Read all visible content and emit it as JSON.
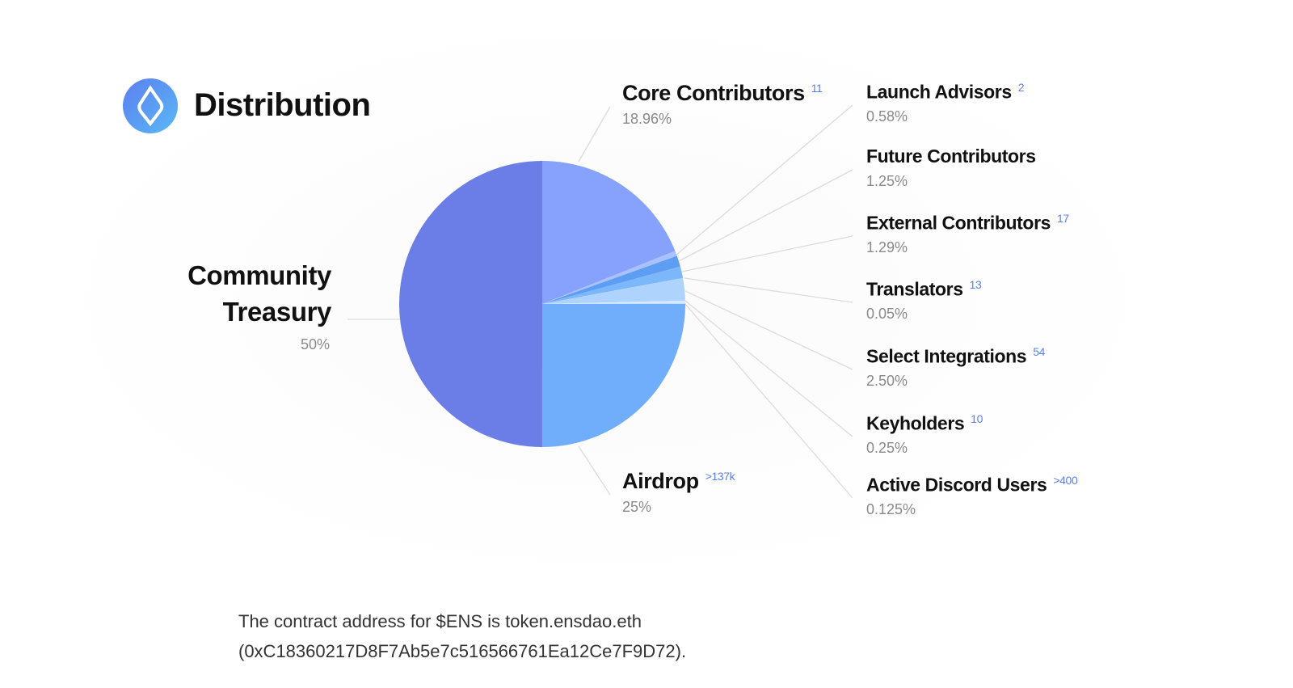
{
  "title": "Distribution",
  "colors": {
    "accent": "#5b7ff0",
    "logo": "#5a9cf6"
  },
  "chart_data": {
    "type": "pie",
    "title": "Distribution",
    "slices": [
      {
        "label": "Core Contributors",
        "value": 18.96,
        "pct_label": "18.96%",
        "recipients": "11",
        "color": "#86a2fc"
      },
      {
        "label": "Launch Advisors",
        "value": 0.58,
        "pct_label": "0.58%",
        "recipients": "2",
        "color": "#a9c1fd"
      },
      {
        "label": "Future Contributors",
        "value": 1.25,
        "pct_label": "1.25%",
        "recipients": "",
        "color": "#5d9ef2"
      },
      {
        "label": "External Contributors",
        "value": 1.29,
        "pct_label": "1.29%",
        "recipients": "17",
        "color": "#7cb6fb"
      },
      {
        "label": "Translators",
        "value": 0.05,
        "pct_label": "0.05%",
        "recipients": "13",
        "color": "#9cc8fb"
      },
      {
        "label": "Select Integrations",
        "value": 2.5,
        "pct_label": "2.50%",
        "recipients": "54",
        "color": "#aed3fd"
      },
      {
        "label": "Keyholders",
        "value": 0.25,
        "pct_label": "0.25%",
        "recipients": "10",
        "color": "#d8e9ff"
      },
      {
        "label": "Active Discord Users",
        "value": 0.125,
        "pct_label": "0.125%",
        "recipients": ">400",
        "color": "#c3ddfd"
      },
      {
        "label": "Airdrop",
        "value": 25,
        "pct_label": "25%",
        "recipients": ">137k",
        "color": "#70adfb"
      },
      {
        "label": "Community Treasury",
        "value": 50,
        "pct_label": "50%",
        "recipients": "",
        "color": "#6b7ee8"
      }
    ]
  },
  "footer": {
    "line1": "The contract address for $ENS is token.ensdao.eth",
    "line2": "(0xC18360217D8F7Ab5e7c516566761Ea12Ce7F9D72)."
  }
}
